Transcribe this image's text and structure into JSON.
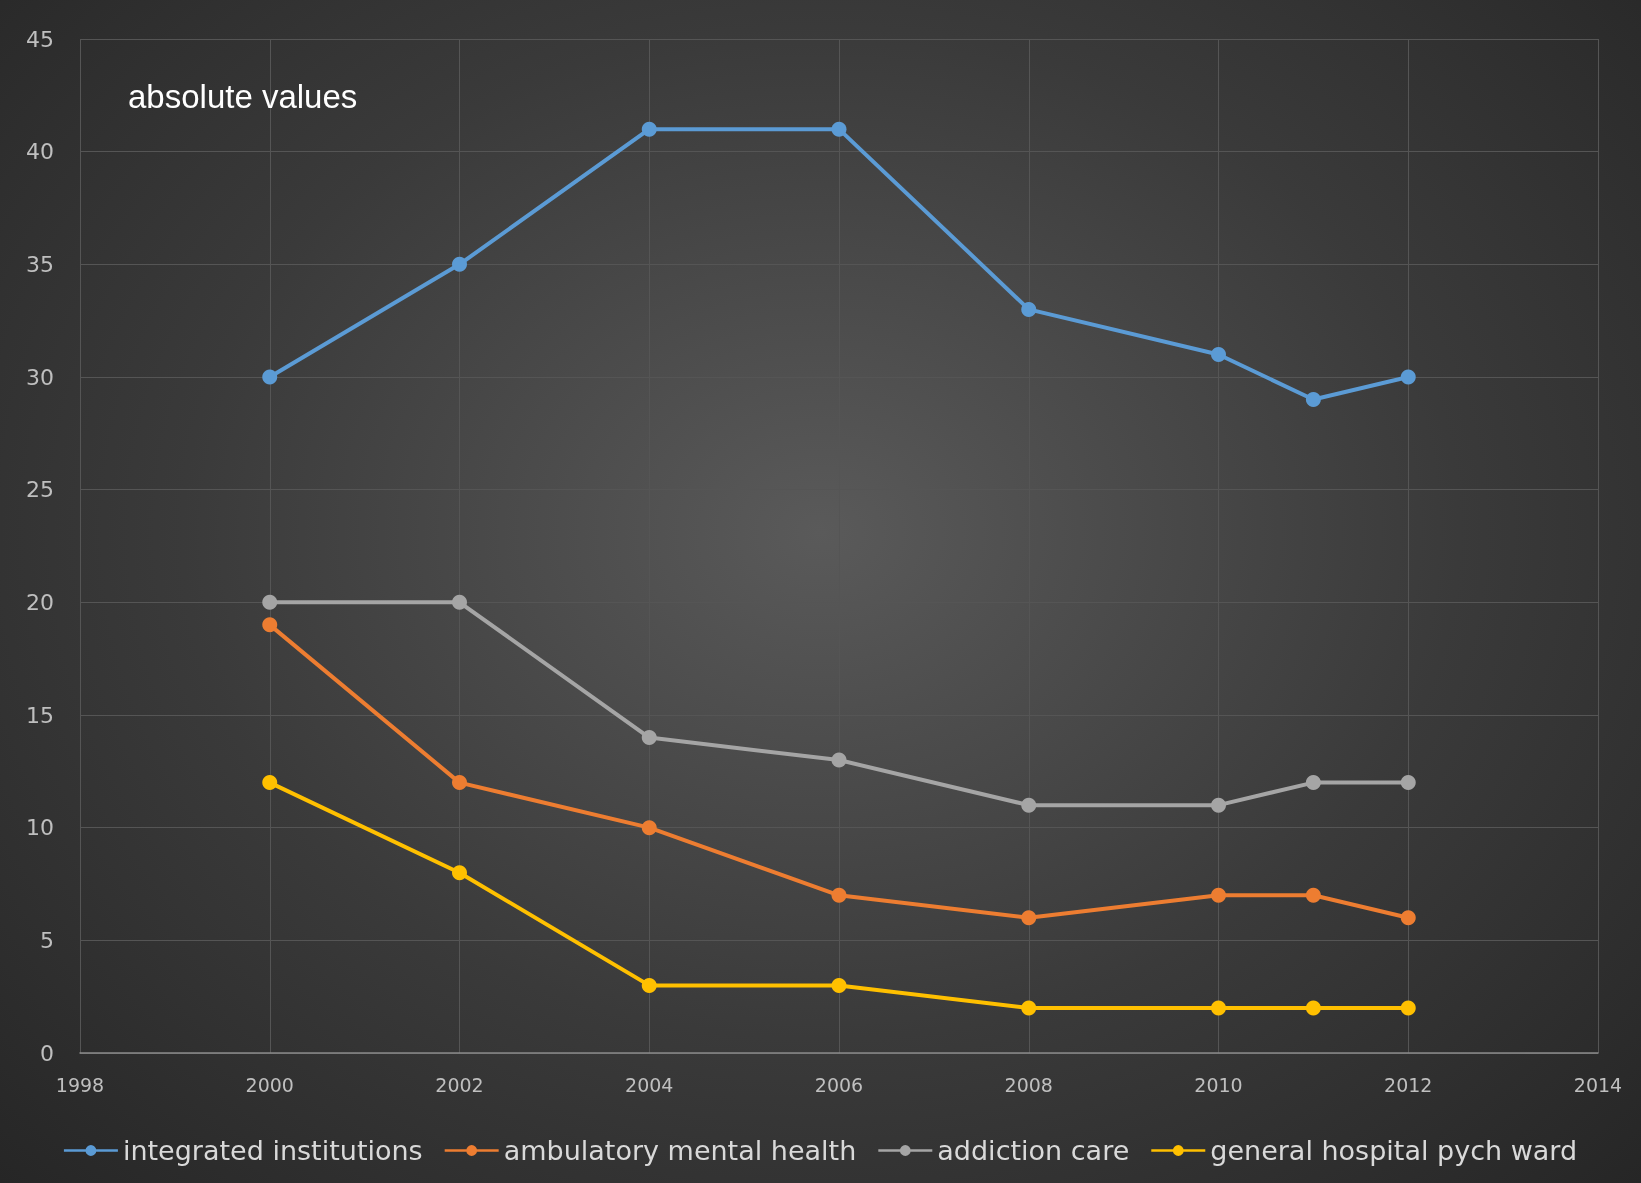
{
  "chart_data": {
    "type": "line",
    "x": [
      2000,
      2002,
      2004,
      2006,
      2008,
      2010,
      2011,
      2012
    ],
    "series": [
      {
        "name": "integrated institutions",
        "color": "#5b9bd5",
        "values": [
          30,
          35,
          41,
          41,
          33,
          31,
          29,
          30
        ]
      },
      {
        "name": "ambulatory mental health",
        "color": "#ed7d31",
        "values": [
          19,
          12,
          10,
          7,
          6,
          7,
          7,
          6
        ]
      },
      {
        "name": "addiction care",
        "color": "#a5a5a5",
        "values": [
          20,
          20,
          14,
          13,
          11,
          11,
          12,
          12
        ]
      },
      {
        "name": "general hospital pych ward",
        "color": "#ffc000",
        "values": [
          12,
          8,
          3,
          3,
          2,
          2,
          2,
          2
        ]
      }
    ],
    "xlim": [
      1998,
      2014
    ],
    "xticks": [
      1998,
      2000,
      2002,
      2004,
      2006,
      2008,
      2010,
      2012,
      2014
    ],
    "ylim": [
      0,
      45
    ],
    "yticks": [
      0,
      5,
      10,
      15,
      20,
      25,
      30,
      35,
      40,
      45
    ],
    "annotations": [
      "absolute values"
    ],
    "grid": true,
    "legend": "bottom",
    "marker": "circle",
    "line_style": "solid"
  }
}
